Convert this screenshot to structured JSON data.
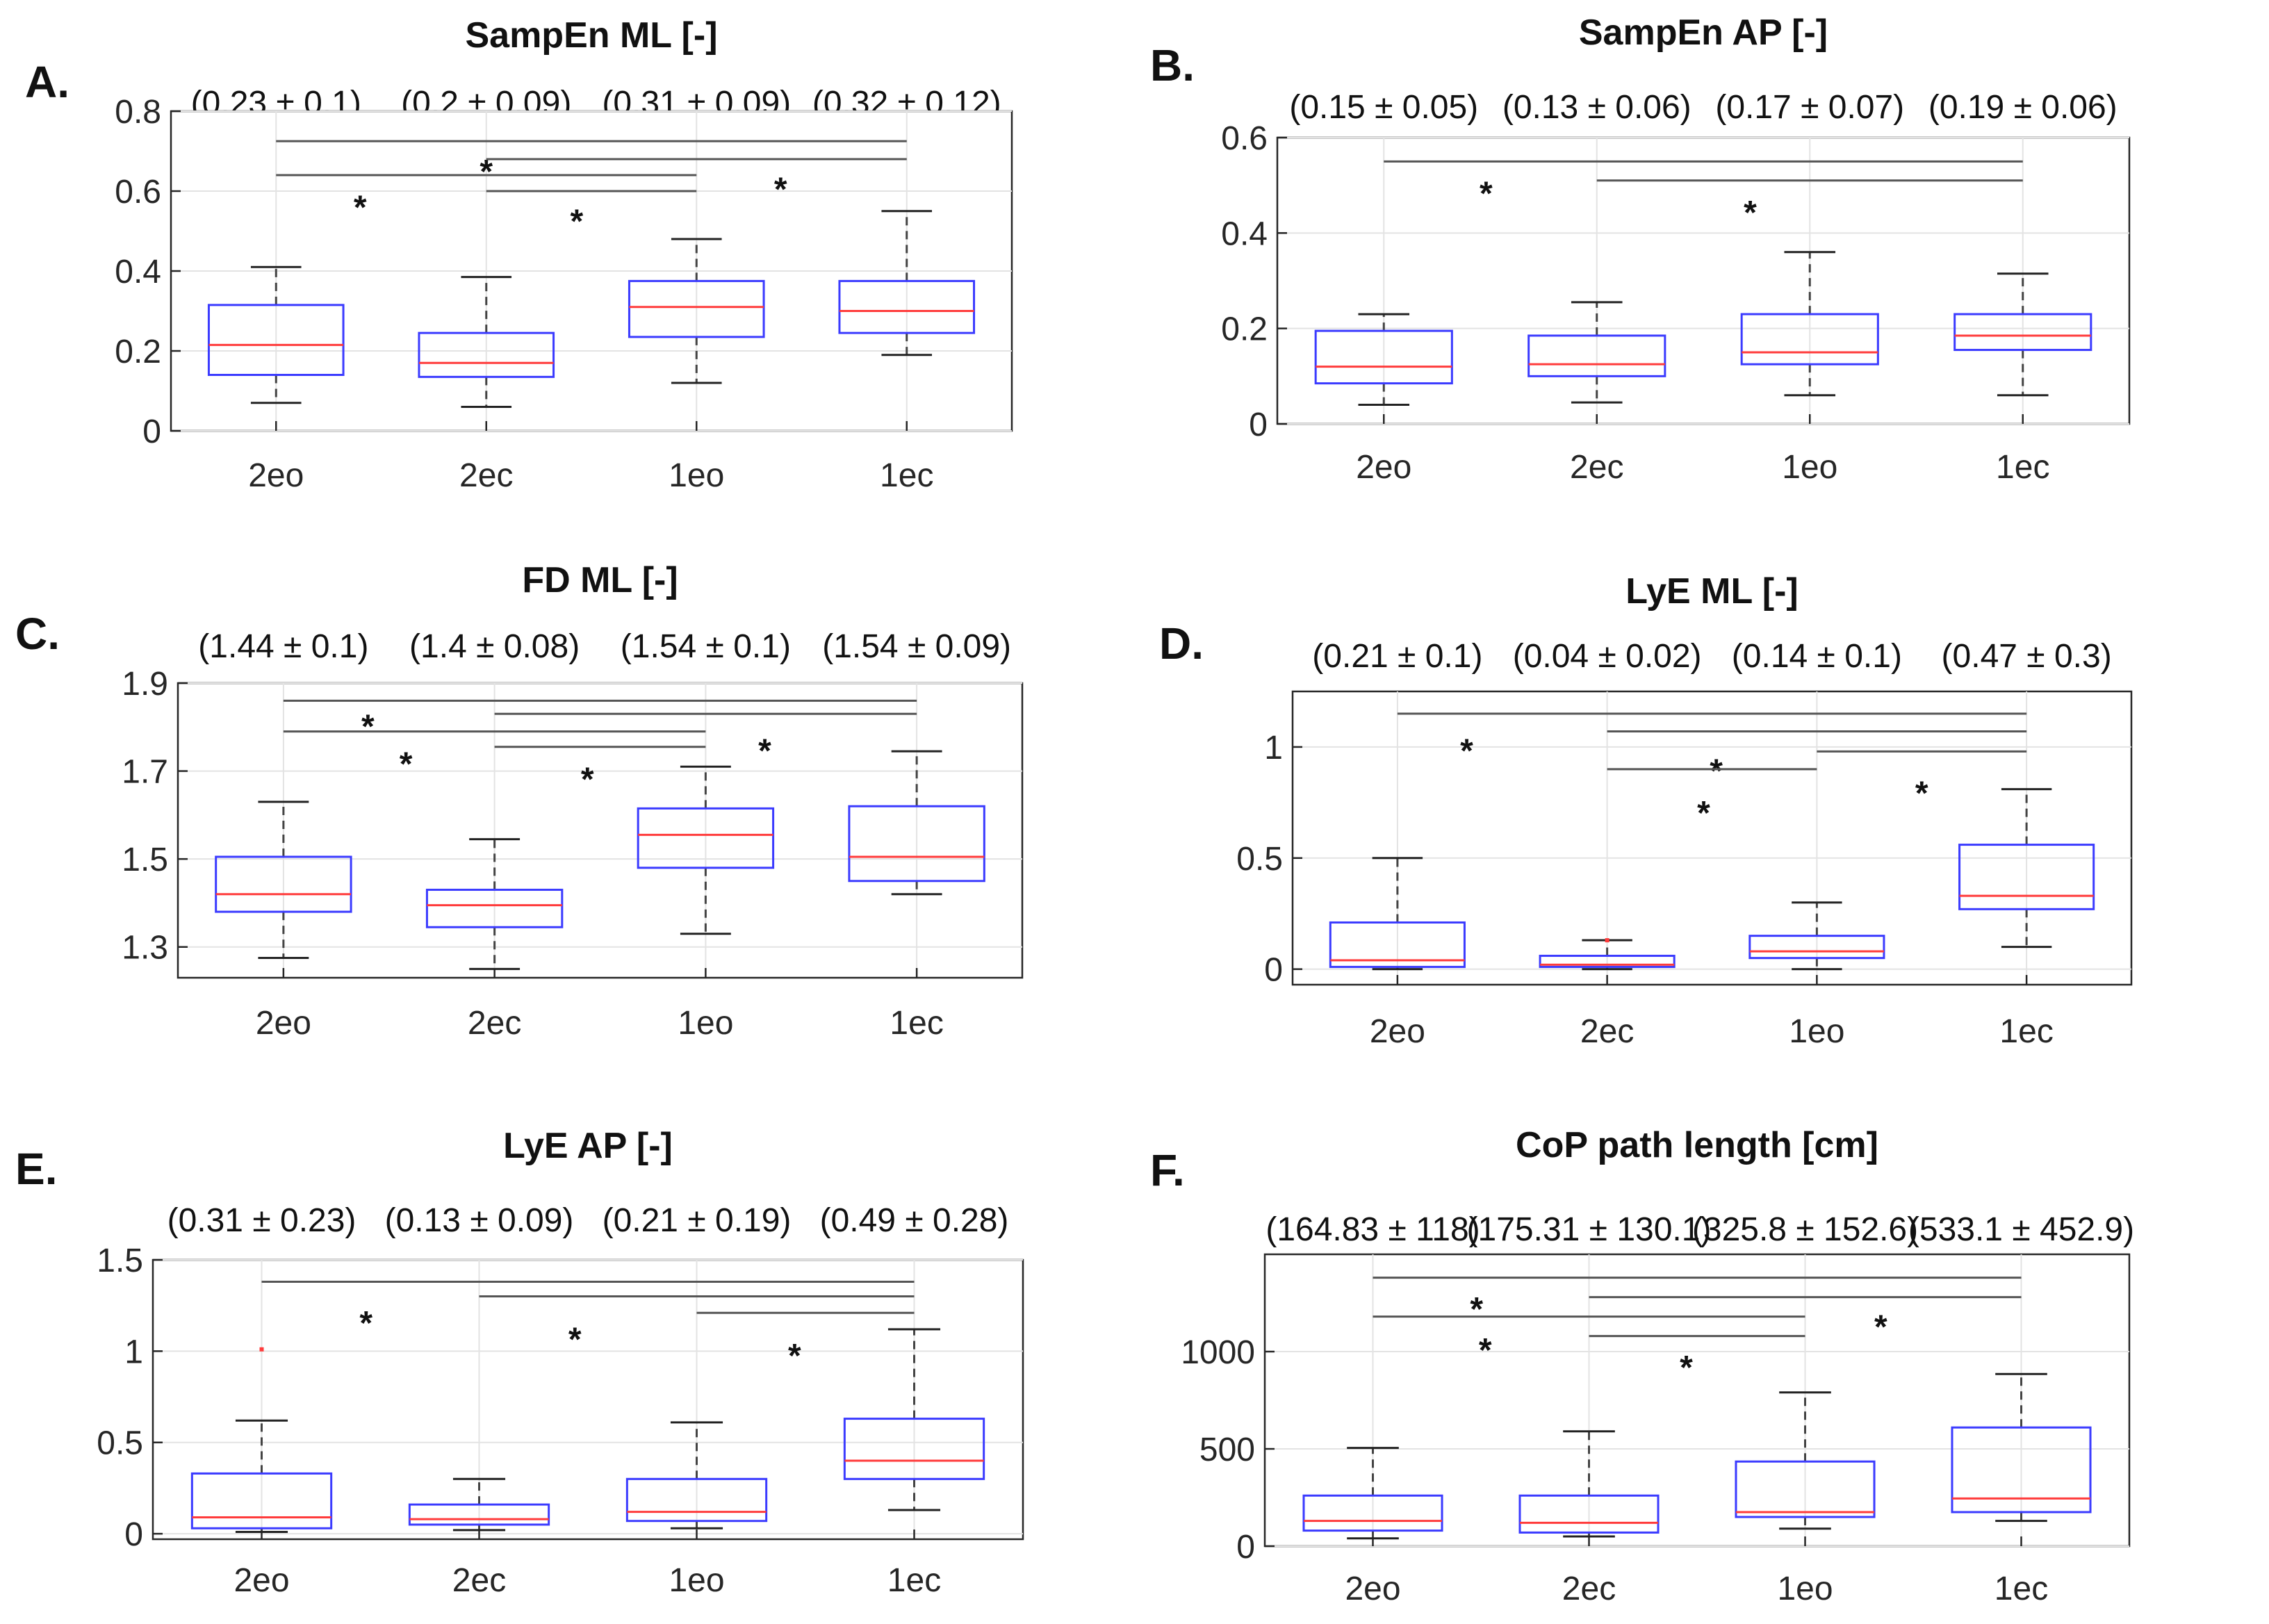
{
  "chart_data": [
    {
      "type": "box",
      "panel_label": "A.",
      "title": "SampEn ML [-]",
      "categories": [
        "2eo",
        "2ec",
        "1eo",
        "1ec"
      ],
      "stats": [
        "(0.23 ± 0.1)",
        "(0.2 ± 0.09)",
        "(0.31 ± 0.09)",
        "(0.32 ± 0.12)"
      ],
      "ylim": [
        0,
        0.8
      ],
      "yticks": [
        0,
        0.2,
        0.4,
        0.6,
        0.8
      ],
      "ytick_labels": [
        "0",
        "0.2",
        "0.4",
        "0.6",
        "0.8"
      ],
      "boxes": [
        {
          "min": 0.07,
          "q1": 0.14,
          "median": 0.215,
          "q3": 0.315,
          "max": 0.41
        },
        {
          "min": 0.06,
          "q1": 0.135,
          "median": 0.17,
          "q3": 0.245,
          "max": 0.385
        },
        {
          "min": 0.12,
          "q1": 0.235,
          "median": 0.31,
          "q3": 0.375,
          "max": 0.48
        },
        {
          "min": 0.19,
          "q1": 0.245,
          "median": 0.3,
          "q3": 0.375,
          "max": 0.55
        }
      ],
      "outliers": [],
      "significance": [
        {
          "from": 0,
          "to": 3,
          "y": 0.725,
          "star_x": 1.0,
          "star_y": 0.67
        },
        {
          "from": 1,
          "to": 3,
          "y": 0.68,
          "star_x": 2.4,
          "star_y": 0.625
        },
        {
          "from": 0,
          "to": 2,
          "y": 0.64,
          "star_x": 0.4,
          "star_y": 0.58
        },
        {
          "from": 1,
          "to": 2,
          "y": 0.6,
          "star_x": 1.43,
          "star_y": 0.545
        }
      ]
    },
    {
      "type": "box",
      "panel_label": "B.",
      "title": "SampEn AP [-]",
      "categories": [
        "2eo",
        "2ec",
        "1eo",
        "1ec"
      ],
      "stats": [
        "(0.15 ± 0.05)",
        "(0.13 ± 0.06)",
        "(0.17 ± 0.07)",
        "(0.19 ± 0.06)"
      ],
      "ylim": [
        0,
        0.6
      ],
      "yticks": [
        0,
        0.2,
        0.4,
        0.6
      ],
      "ytick_labels": [
        "0",
        "0.2",
        "0.4",
        "0.6"
      ],
      "boxes": [
        {
          "min": 0.04,
          "q1": 0.085,
          "median": 0.12,
          "q3": 0.195,
          "max": 0.23
        },
        {
          "min": 0.045,
          "q1": 0.1,
          "median": 0.125,
          "q3": 0.185,
          "max": 0.255
        },
        {
          "min": 0.06,
          "q1": 0.125,
          "median": 0.15,
          "q3": 0.23,
          "max": 0.36
        },
        {
          "min": 0.06,
          "q1": 0.155,
          "median": 0.185,
          "q3": 0.23,
          "max": 0.315
        }
      ],
      "outliers": [],
      "significance": [
        {
          "from": 0,
          "to": 3,
          "y": 0.55,
          "star_x": 0.48,
          "star_y": 0.5
        },
        {
          "from": 1,
          "to": 3,
          "y": 0.51,
          "star_x": 1.72,
          "star_y": 0.46
        }
      ]
    },
    {
      "type": "box",
      "panel_label": "C.",
      "title": "FD ML [-]",
      "categories": [
        "2eo",
        "2ec",
        "1eo",
        "1ec"
      ],
      "stats": [
        "(1.44 ± 0.1)",
        "(1.4 ± 0.08)",
        "(1.54 ± 0.1)",
        "(1.54 ± 0.09)"
      ],
      "ylim": [
        1.23,
        1.9
      ],
      "yticks": [
        1.3,
        1.5,
        1.7,
        1.9
      ],
      "ytick_labels": [
        "1.3",
        "1.5",
        "1.7",
        "1.9"
      ],
      "boxes": [
        {
          "min": 1.275,
          "q1": 1.38,
          "median": 1.42,
          "q3": 1.505,
          "max": 1.63
        },
        {
          "min": 1.25,
          "q1": 1.345,
          "median": 1.395,
          "q3": 1.43,
          "max": 1.545
        },
        {
          "min": 1.33,
          "q1": 1.48,
          "median": 1.555,
          "q3": 1.615,
          "max": 1.71
        },
        {
          "min": 1.42,
          "q1": 1.45,
          "median": 1.505,
          "q3": 1.62,
          "max": 1.745
        }
      ],
      "outliers": [],
      "significance": [
        {
          "from": 0,
          "to": 3,
          "y": 1.86,
          "star_x": 0.4,
          "star_y": 1.82
        },
        {
          "from": 1,
          "to": 3,
          "y": 1.83,
          "star_x": 2.28,
          "star_y": 1.765
        },
        {
          "from": 0,
          "to": 2,
          "y": 1.79,
          "star_x": 0.58,
          "star_y": 1.735
        },
        {
          "from": 1,
          "to": 2,
          "y": 1.755,
          "star_x": 1.44,
          "star_y": 1.7
        }
      ]
    },
    {
      "type": "box",
      "panel_label": "D.",
      "title": "LyE ML [-]",
      "categories": [
        "2eo",
        "2ec",
        "1eo",
        "1ec"
      ],
      "stats": [
        "(0.21 ± 0.1)",
        "(0.04 ± 0.02)",
        "(0.14 ± 0.1)",
        "(0.47 ± 0.3)"
      ],
      "ylim": [
        -0.07,
        1.25
      ],
      "yticks": [
        0,
        0.5,
        1
      ],
      "ytick_labels": [
        "0",
        "0.5",
        "1"
      ],
      "boxes": [
        {
          "min": 0.0,
          "q1": 0.01,
          "median": 0.04,
          "q3": 0.21,
          "max": 0.5
        },
        {
          "min": 0.0,
          "q1": 0.01,
          "median": 0.02,
          "q3": 0.06,
          "max": 0.13
        },
        {
          "min": 0.0,
          "q1": 0.05,
          "median": 0.08,
          "q3": 0.15,
          "max": 0.3
        },
        {
          "min": 0.1,
          "q1": 0.27,
          "median": 0.33,
          "q3": 0.56,
          "max": 0.81
        }
      ],
      "outliers": [
        {
          "box": 1,
          "value": 0.13
        }
      ],
      "significance": [
        {
          "from": 0,
          "to": 3,
          "y": 1.15,
          "star_x": 0.33,
          "star_y": 1.02
        },
        {
          "from": 1,
          "to": 3,
          "y": 1.07,
          "star_x": 1.52,
          "star_y": 0.93
        },
        {
          "from": 2,
          "to": 3,
          "y": 0.98,
          "star_x": 2.5,
          "star_y": 0.83
        },
        {
          "from": 1,
          "to": 2,
          "y": 0.9,
          "star_x": 1.46,
          "star_y": 0.74
        }
      ]
    },
    {
      "type": "box",
      "panel_label": "E.",
      "title": "LyE AP [-]",
      "categories": [
        "2eo",
        "2ec",
        "1eo",
        "1ec"
      ],
      "stats": [
        "(0.31 ± 0.23)",
        "(0.13 ± 0.09)",
        "(0.21 ± 0.19)",
        "(0.49 ± 0.28)"
      ],
      "ylim": [
        -0.03,
        1.5
      ],
      "yticks": [
        0,
        0.5,
        1,
        1.5
      ],
      "ytick_labels": [
        "0",
        "0.5",
        "1",
        "1.5"
      ],
      "boxes": [
        {
          "min": 0.01,
          "q1": 0.03,
          "median": 0.09,
          "q3": 0.33,
          "max": 0.62
        },
        {
          "min": 0.02,
          "q1": 0.05,
          "median": 0.08,
          "q3": 0.16,
          "max": 0.3
        },
        {
          "min": 0.03,
          "q1": 0.07,
          "median": 0.12,
          "q3": 0.3,
          "max": 0.61
        },
        {
          "min": 0.13,
          "q1": 0.3,
          "median": 0.4,
          "q3": 0.63,
          "max": 1.12
        }
      ],
      "outliers": [
        {
          "box": 0,
          "value": 1.01
        }
      ],
      "significance": [
        {
          "from": 0,
          "to": 3,
          "y": 1.38,
          "star_x": 0.48,
          "star_y": 1.2
        },
        {
          "from": 1,
          "to": 3,
          "y": 1.3,
          "star_x": 1.44,
          "star_y": 1.11
        },
        {
          "from": 2,
          "to": 3,
          "y": 1.21,
          "star_x": 2.45,
          "star_y": 1.02
        }
      ]
    },
    {
      "type": "box",
      "panel_label": "F.",
      "title": "CoP path length [cm]",
      "categories": [
        "2eo",
        "2ec",
        "1eo",
        "1ec"
      ],
      "stats": [
        "(164.83 ± 118)",
        "(175.31 ± 130.1)",
        "(325.8 ± 152.6)",
        "(533.1 ± 452.9)"
      ],
      "ylim": [
        0,
        1500
      ],
      "yticks": [
        0,
        500,
        1000
      ],
      "ytick_labels": [
        "0",
        "500",
        "1000"
      ],
      "boxes": [
        {
          "min": 40,
          "q1": 80,
          "median": 130,
          "q3": 260,
          "max": 505
        },
        {
          "min": 50,
          "q1": 70,
          "median": 120,
          "q3": 260,
          "max": 590
        },
        {
          "min": 90,
          "q1": 150,
          "median": 175,
          "q3": 435,
          "max": 790
        },
        {
          "min": 130,
          "q1": 175,
          "median": 245,
          "q3": 610,
          "max": 885
        }
      ],
      "outliers": [],
      "significance": [
        {
          "from": 0,
          "to": 3,
          "y": 1380,
          "star_x": 0.48,
          "star_y": 1260
        },
        {
          "from": 1,
          "to": 3,
          "y": 1280,
          "star_x": 2.35,
          "star_y": 1170
        },
        {
          "from": 0,
          "to": 2,
          "y": 1180,
          "star_x": 0.52,
          "star_y": 1050
        },
        {
          "from": 1,
          "to": 2,
          "y": 1080,
          "star_x": 1.45,
          "star_y": 960
        }
      ]
    }
  ]
}
